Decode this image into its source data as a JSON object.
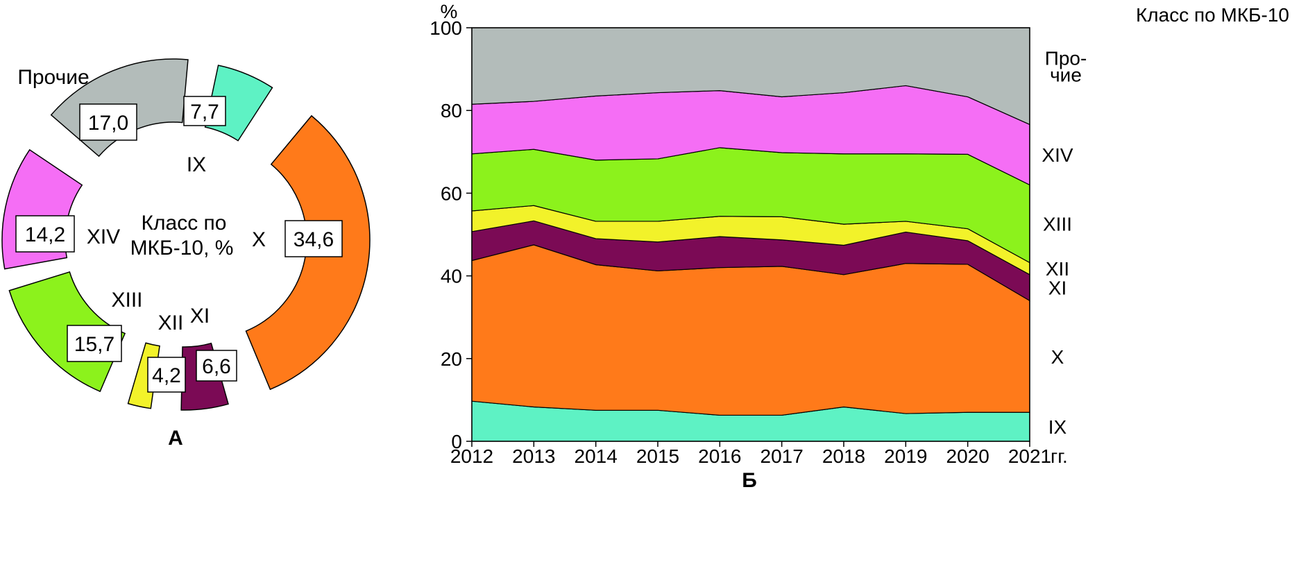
{
  "chart_data": [
    {
      "type": "pie",
      "panel_label": "А",
      "center_label_line1": "Класс по",
      "center_label_line2": "МКБ-10, %",
      "slices": [
        {
          "key": "ix",
          "label": "IX",
          "value": 7.7,
          "value_text": "7,7",
          "color": "#5ef2c4"
        },
        {
          "key": "x",
          "label": "X",
          "value": 34.6,
          "value_text": "34,6",
          "color": "#ff7a1a"
        },
        {
          "key": "xi",
          "label": "XI",
          "value": 6.6,
          "value_text": "6,6",
          "color": "#7b0a55"
        },
        {
          "key": "xii",
          "label": "XII",
          "value": 4.2,
          "value_text": "4,2",
          "color": "#f2f22a"
        },
        {
          "key": "xiii",
          "label": "XIII",
          "value": 15.7,
          "value_text": "15,7",
          "color": "#8cf21c"
        },
        {
          "key": "xiv",
          "label": "XIV",
          "value": 14.2,
          "value_text": "14,2",
          "color": "#f56ef5"
        },
        {
          "key": "other",
          "label": "Прочие",
          "value": 17.0,
          "value_text": "17,0",
          "color": "#b3bcba"
        }
      ]
    },
    {
      "type": "area",
      "stacked": true,
      "panel_label": "Б",
      "ylabel": "%",
      "legend_title": "Класс по МКБ-10",
      "x_unit": "гг.",
      "x": [
        "2012",
        "2013",
        "2014",
        "2015",
        "2016",
        "2017",
        "2018",
        "2019",
        "2020",
        "2021"
      ],
      "ylim": [
        0,
        100
      ],
      "yticks": [
        "0",
        "20",
        "40",
        "60",
        "80",
        "100"
      ],
      "series": [
        {
          "name": "IX",
          "color": "#5ef2c4",
          "values": [
            9.7,
            8.3,
            7.5,
            7.5,
            6.3,
            6.3,
            8.3,
            6.7,
            7.0,
            7.0
          ]
        },
        {
          "name": "X",
          "color": "#ff7a1a",
          "values": [
            34.0,
            39.2,
            35.2,
            33.7,
            35.7,
            36.0,
            32.0,
            36.3,
            35.8,
            27.0
          ]
        },
        {
          "name": "XI",
          "color": "#7b0a55",
          "values": [
            7.0,
            5.8,
            6.3,
            7.0,
            7.5,
            6.4,
            7.1,
            7.6,
            5.7,
            6.3
          ]
        },
        {
          "name": "XII",
          "color": "#f2f22a",
          "values": [
            5.0,
            3.7,
            4.2,
            5.0,
            4.9,
            5.6,
            5.1,
            2.6,
            2.9,
            2.9
          ]
        },
        {
          "name": "XIII",
          "color": "#8cf21c",
          "values": [
            13.8,
            13.6,
            14.8,
            15.1,
            16.6,
            15.5,
            17.0,
            16.3,
            18.0,
            18.8
          ]
        },
        {
          "name": "XIV",
          "color": "#f56ef5",
          "values": [
            12.0,
            11.6,
            15.5,
            16.0,
            13.8,
            13.5,
            14.8,
            16.5,
            13.9,
            14.6
          ]
        },
        {
          "name": "Прочие",
          "display_name": [
            "Про-",
            "чие"
          ],
          "color": "#b3bcba",
          "values": [
            18.5,
            17.8,
            16.5,
            15.7,
            15.2,
            16.7,
            15.7,
            14.0,
            16.7,
            23.4
          ]
        }
      ]
    }
  ]
}
